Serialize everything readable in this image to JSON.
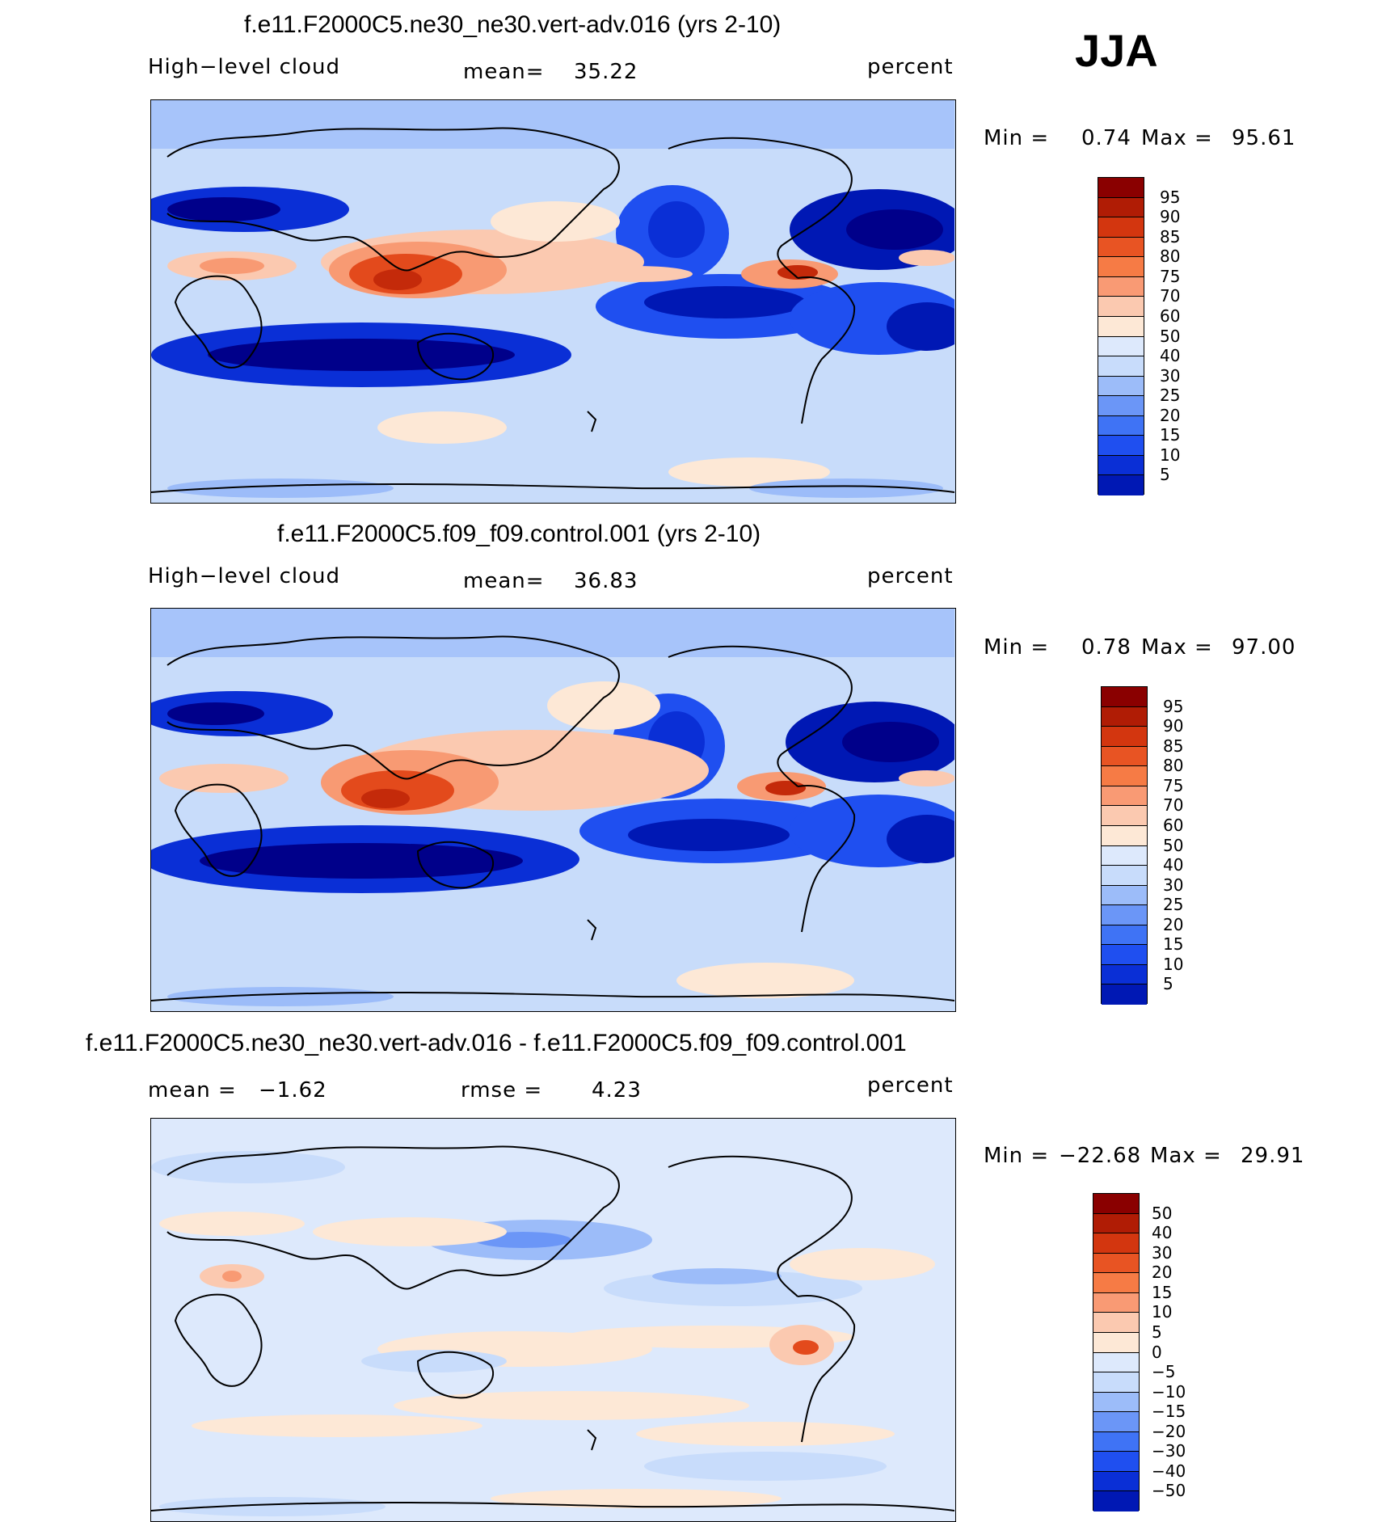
{
  "season": "JJA",
  "colors": {
    "blue_scale": [
      "#00008a",
      "#0018b4",
      "#0a2fd6",
      "#1f4ff0",
      "#3f73f5",
      "#6b96f7",
      "#9cbcf9",
      "#c8dcfb",
      "#dde9fc"
    ],
    "red_scale": [
      "#fde8d6",
      "#fbc9b0",
      "#f89a73",
      "#f1743f",
      "#e34a1c",
      "#c42a0a",
      "#8a0000"
    ],
    "coast": "#000000"
  },
  "panels": [
    {
      "title": "f.e11.F2000C5.ne30_ne30.vert-adv.016 (yrs 2-10)",
      "left_label": "High−level cloud",
      "mean_label": "mean=",
      "mean_value": "35.22",
      "units": "percent",
      "min_label": "Min =",
      "min_value": "0.74",
      "max_label": "Max =",
      "max_value": "95.61",
      "colorbar": {
        "levels": [
          "95",
          "90",
          "85",
          "80",
          "75",
          "70",
          "60",
          "50",
          "40",
          "30",
          "25",
          "20",
          "15",
          "10",
          "5"
        ]
      }
    },
    {
      "title": "f.e11.F2000C5.f09_f09.control.001 (yrs 2-10)",
      "left_label": "High−level cloud",
      "mean_label": "mean=",
      "mean_value": "36.83",
      "units": "percent",
      "min_label": "Min =",
      "min_value": "0.78",
      "max_label": "Max =",
      "max_value": "97.00",
      "colorbar": {
        "levels": [
          "95",
          "90",
          "85",
          "80",
          "75",
          "70",
          "60",
          "50",
          "40",
          "30",
          "25",
          "20",
          "15",
          "10",
          "5"
        ]
      }
    },
    {
      "title": "f.e11.F2000C5.ne30_ne30.vert-adv.016 - f.e11.F2000C5.f09_f09.control.001",
      "left_label": "mean =",
      "left_value": "−1.62",
      "rmse_label": "rmse =",
      "rmse_value": "4.23",
      "units": "percent",
      "min_label": "Min =",
      "min_value": "−22.68",
      "max_label": "Max =",
      "max_value": "29.91",
      "colorbar": {
        "levels": [
          "50",
          "40",
          "30",
          "20",
          "15",
          "10",
          "5",
          "0",
          "−5",
          "−10",
          "−15",
          "−20",
          "−30",
          "−40",
          "−50"
        ]
      }
    }
  ]
}
